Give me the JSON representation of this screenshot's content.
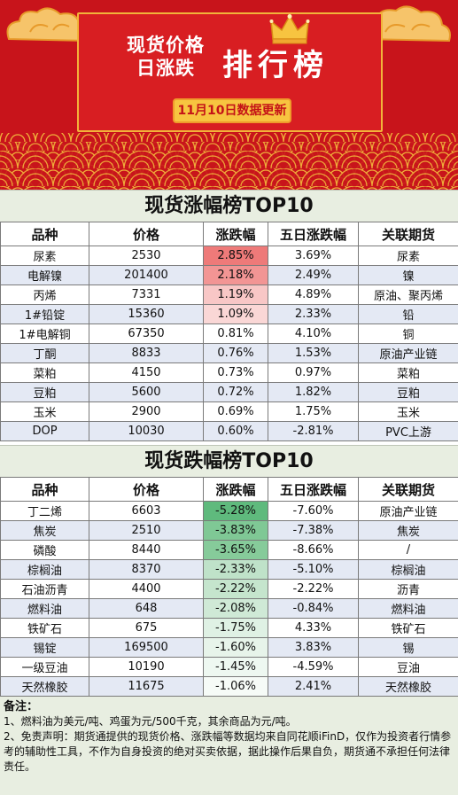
{
  "header": {
    "title_line1": "现货价格",
    "title_line2": "日涨跌",
    "title_big": "排行榜",
    "date_badge": "11月10日数据更新",
    "colors": {
      "banner_red": "#c8141b",
      "gold": "#f2b33a",
      "badge": "#f7c440"
    }
  },
  "columns": [
    "品种",
    "价格",
    "涨跌幅",
    "五日涨跌幅",
    "关联期货"
  ],
  "rise": {
    "title": "现货涨幅榜TOP10",
    "rows": [
      [
        "尿素",
        "2530",
        "2.85%",
        "3.69%",
        "尿素"
      ],
      [
        "电解镍",
        "201400",
        "2.18%",
        "2.49%",
        "镍"
      ],
      [
        "丙烯",
        "7331",
        "1.19%",
        "4.89%",
        "原油、聚丙烯"
      ],
      [
        "1#铅锭",
        "15360",
        "1.09%",
        "2.33%",
        "铅"
      ],
      [
        "1#电解铜",
        "67350",
        "0.81%",
        "4.10%",
        "铜"
      ],
      [
        "丁酮",
        "8833",
        "0.76%",
        "1.53%",
        "原油产业链"
      ],
      [
        "菜粕",
        "4150",
        "0.73%",
        "0.97%",
        "菜粕"
      ],
      [
        "豆粕",
        "5600",
        "0.72%",
        "1.82%",
        "豆粕"
      ],
      [
        "玉米",
        "2900",
        "0.69%",
        "1.75%",
        "玉米"
      ],
      [
        "DOP",
        "10030",
        "0.60%",
        "-2.81%",
        "PVC上游"
      ]
    ],
    "change_colors": [
      "#ee7a79",
      "#f29594",
      "#f8c7c6",
      "#fad7d6",
      "#ffffff",
      "#ffffff",
      "#ffffff",
      "#ffffff",
      "#ffffff",
      "#ffffff"
    ]
  },
  "fall": {
    "title": "现货跌幅榜TOP10",
    "rows": [
      [
        "丁二烯",
        "6603",
        "-5.28%",
        "-7.60%",
        "原油产业链"
      ],
      [
        "焦炭",
        "2510",
        "-3.83%",
        "-7.38%",
        "焦炭"
      ],
      [
        "磷酸",
        "8440",
        "-3.65%",
        "-8.66%",
        "/"
      ],
      [
        "棕榈油",
        "8370",
        "-2.33%",
        "-5.10%",
        "棕榈油"
      ],
      [
        "石油沥青",
        "4400",
        "-2.22%",
        "-2.22%",
        "沥青"
      ],
      [
        "燃料油",
        "648",
        "-2.08%",
        "-0.84%",
        "燃料油"
      ],
      [
        "铁矿石",
        "675",
        "-1.75%",
        "4.33%",
        "铁矿石"
      ],
      [
        "锡锭",
        "169500",
        "-1.60%",
        "3.83%",
        "锡"
      ],
      [
        "一级豆油",
        "10190",
        "-1.45%",
        "-4.59%",
        "豆油"
      ],
      [
        "天然橡胶",
        "11675",
        "-1.06%",
        "2.41%",
        "天然橡胶"
      ]
    ],
    "change_colors": [
      "#5fba7d",
      "#7fc895",
      "#86cb9a",
      "#bfe2c9",
      "#c5e5cd",
      "#cfe9d6",
      "#dff1e4",
      "#e7f4ea",
      "#eef8f1",
      "#f6fbf7"
    ]
  },
  "notes": {
    "title": "备注：",
    "line1": "1、燃料油为美元/吨、鸡蛋为元/500千克，其余商品为元/吨。",
    "line2": "2、免责声明：期货通提供的现货价格、涨跌幅等数据均来自同花顺iFinD，仅作为投资者行情参考的辅助性工具，不作为自身投资的绝对买卖依据，据此操作后果自负，期货通不承担任何法律责任。"
  }
}
